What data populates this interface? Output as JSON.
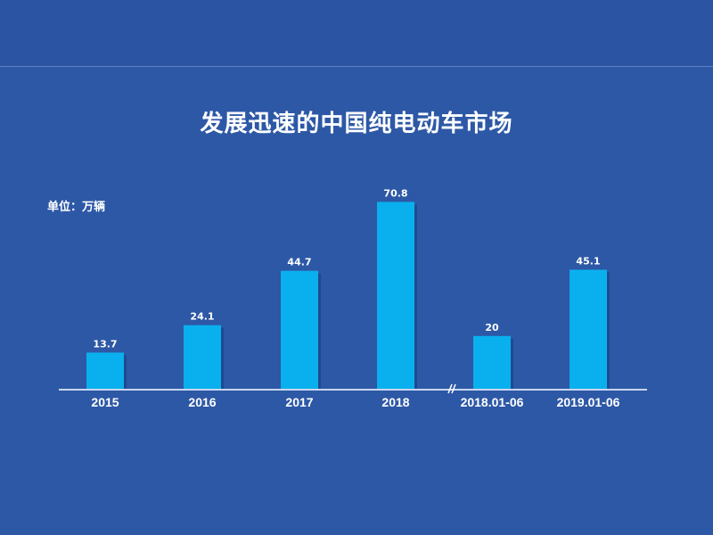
{
  "chart_data": {
    "type": "bar",
    "title": "发展迅速的中国纯电动车市场",
    "unit_label": "单位：万辆",
    "categories": [
      "2015",
      "2016",
      "2017",
      "2018",
      "2018.01-06",
      "2019.01-06"
    ],
    "values": [
      13.7,
      24.1,
      44.7,
      70.8,
      20,
      45.1
    ],
    "value_labels": [
      "13.7",
      "24.1",
      "44.7",
      "70.8",
      "20",
      "45.1"
    ],
    "axis_break_after_index": 3,
    "bar_color": "#0ab0ee",
    "background_color": "#2d58a6",
    "grid": false,
    "legend": "none"
  }
}
